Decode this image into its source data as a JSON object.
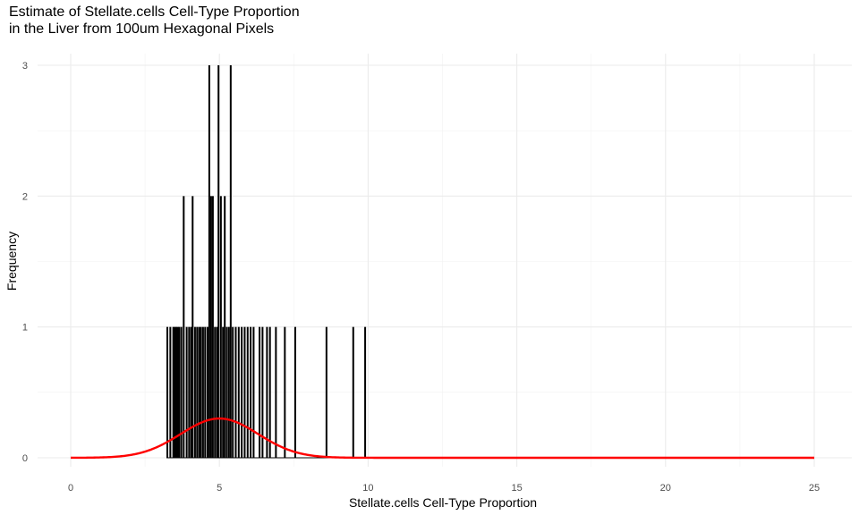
{
  "chart_data": {
    "type": "histogram",
    "title": "Estimate of Stellate.cells Cell-Type Proportion",
    "subtitle": "in the Liver from 100um Hexagonal Pixels",
    "xlabel": "Stellate.cells Cell-Type Proportion",
    "ylabel": "Frequency",
    "xlim": [
      -1,
      26
    ],
    "ylim": [
      0,
      3
    ],
    "x_ticks": [
      0,
      5,
      10,
      15,
      20,
      25
    ],
    "y_ticks": [
      0,
      1,
      2,
      3
    ],
    "grid": true,
    "bars": [
      {
        "x": 3.25,
        "count": 1
      },
      {
        "x": 3.35,
        "count": 1
      },
      {
        "x": 3.45,
        "count": 1
      },
      {
        "x": 3.5,
        "count": 1
      },
      {
        "x": 3.55,
        "count": 1
      },
      {
        "x": 3.6,
        "count": 1
      },
      {
        "x": 3.65,
        "count": 1
      },
      {
        "x": 3.72,
        "count": 1
      },
      {
        "x": 3.8,
        "count": 2
      },
      {
        "x": 3.9,
        "count": 1
      },
      {
        "x": 3.98,
        "count": 1
      },
      {
        "x": 4.05,
        "count": 1
      },
      {
        "x": 4.1,
        "count": 2
      },
      {
        "x": 4.18,
        "count": 1
      },
      {
        "x": 4.25,
        "count": 1
      },
      {
        "x": 4.32,
        "count": 1
      },
      {
        "x": 4.38,
        "count": 1
      },
      {
        "x": 4.45,
        "count": 1
      },
      {
        "x": 4.52,
        "count": 1
      },
      {
        "x": 4.6,
        "count": 1
      },
      {
        "x": 4.66,
        "count": 3
      },
      {
        "x": 4.72,
        "count": 2
      },
      {
        "x": 4.78,
        "count": 2
      },
      {
        "x": 4.85,
        "count": 1
      },
      {
        "x": 4.92,
        "count": 1
      },
      {
        "x": 4.97,
        "count": 3
      },
      {
        "x": 5.05,
        "count": 2
      },
      {
        "x": 5.12,
        "count": 1
      },
      {
        "x": 5.18,
        "count": 2
      },
      {
        "x": 5.25,
        "count": 1
      },
      {
        "x": 5.32,
        "count": 1
      },
      {
        "x": 5.38,
        "count": 3
      },
      {
        "x": 5.45,
        "count": 1
      },
      {
        "x": 5.55,
        "count": 1
      },
      {
        "x": 5.65,
        "count": 1
      },
      {
        "x": 5.75,
        "count": 1
      },
      {
        "x": 5.85,
        "count": 1
      },
      {
        "x": 5.95,
        "count": 1
      },
      {
        "x": 6.05,
        "count": 1
      },
      {
        "x": 6.15,
        "count": 1
      },
      {
        "x": 6.35,
        "count": 1
      },
      {
        "x": 6.45,
        "count": 1
      },
      {
        "x": 6.6,
        "count": 1
      },
      {
        "x": 6.7,
        "count": 1
      },
      {
        "x": 6.9,
        "count": 1
      },
      {
        "x": 7.2,
        "count": 1
      },
      {
        "x": 7.55,
        "count": 1
      },
      {
        "x": 8.6,
        "count": 1
      },
      {
        "x": 9.5,
        "count": 1
      },
      {
        "x": 9.9,
        "count": 1
      }
    ],
    "density_curve": {
      "color": "#ff0000",
      "shape": "normal",
      "mean": 5.0,
      "sd": 1.3,
      "peak": 0.3
    },
    "baseline_color": "#000000"
  }
}
